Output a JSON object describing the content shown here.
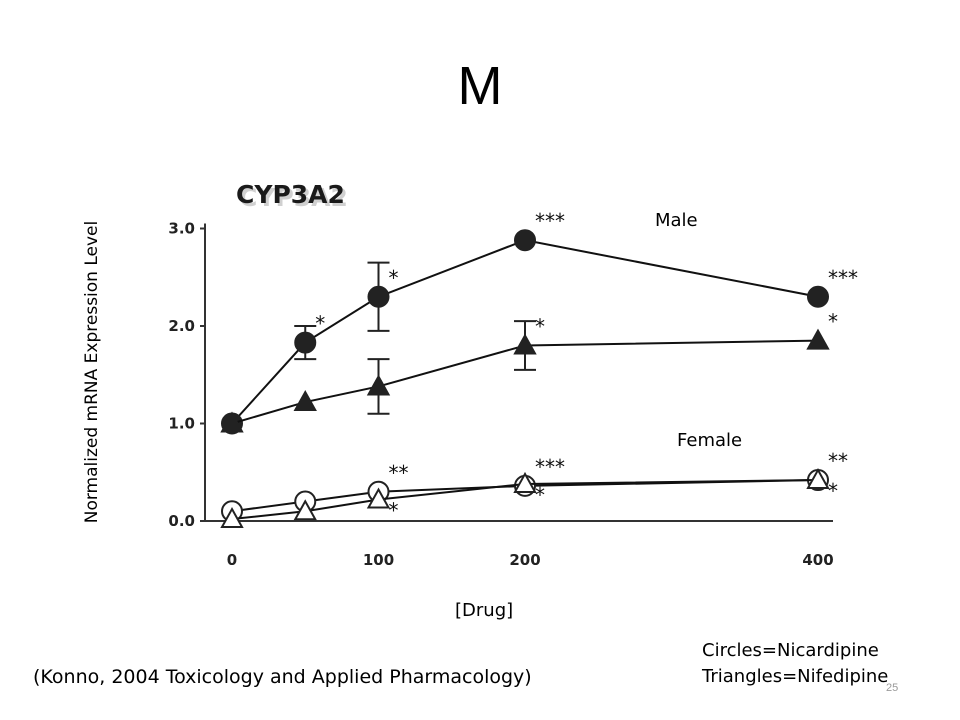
{
  "slide": {
    "title": "M",
    "citation": "(Konno, 2004 Toxicology and Applied Pharmacology)",
    "legend_lines": [
      "Circles=Nicardipine",
      "Triangles=Nifedipine"
    ],
    "slide_number": "25"
  },
  "chart_data": {
    "type": "line",
    "title": "CYP3A2",
    "xlabel": "[Drug]",
    "ylabel": "Normalized mRNA Expression Level",
    "x_ticks": [
      0,
      100,
      200,
      400
    ],
    "y_ticks": [
      "0.0",
      "1.0",
      "2.0",
      "3.0"
    ],
    "ylim": [
      0,
      3
    ],
    "group_labels": [
      "Male",
      "Female"
    ],
    "series": [
      {
        "group": "Male",
        "marker": "circle",
        "fill": "filled",
        "x": [
          0,
          50,
          100,
          200,
          400
        ],
        "y": [
          1.0,
          1.83,
          2.3,
          2.88,
          2.3
        ],
        "error": [
          0,
          0.17,
          0.35,
          0,
          0
        ],
        "significance": [
          "",
          "*",
          "*",
          "***",
          "***"
        ]
      },
      {
        "group": "Male",
        "marker": "triangle",
        "fill": "filled",
        "x": [
          0,
          50,
          100,
          200,
          400
        ],
        "y": [
          1.0,
          1.22,
          1.38,
          1.8,
          1.85
        ],
        "error": [
          0,
          0,
          0.28,
          0.25,
          0
        ],
        "significance": [
          "",
          "",
          "",
          "*",
          "*"
        ]
      },
      {
        "group": "Female",
        "marker": "circle",
        "fill": "open",
        "x": [
          0,
          50,
          100,
          200,
          400
        ],
        "y": [
          0.1,
          0.2,
          0.3,
          0.36,
          0.42
        ],
        "error": [
          0,
          0,
          0,
          0,
          0
        ],
        "significance": [
          "",
          "",
          "**",
          "***",
          "**"
        ]
      },
      {
        "group": "Female",
        "marker": "triangle",
        "fill": "open",
        "x": [
          0,
          50,
          100,
          200,
          400
        ],
        "y": [
          0.02,
          0.1,
          0.22,
          0.38,
          0.42
        ],
        "error": [
          0,
          0,
          0,
          0,
          0
        ],
        "significance": [
          "",
          "",
          "*",
          "*",
          "*"
        ]
      }
    ]
  }
}
